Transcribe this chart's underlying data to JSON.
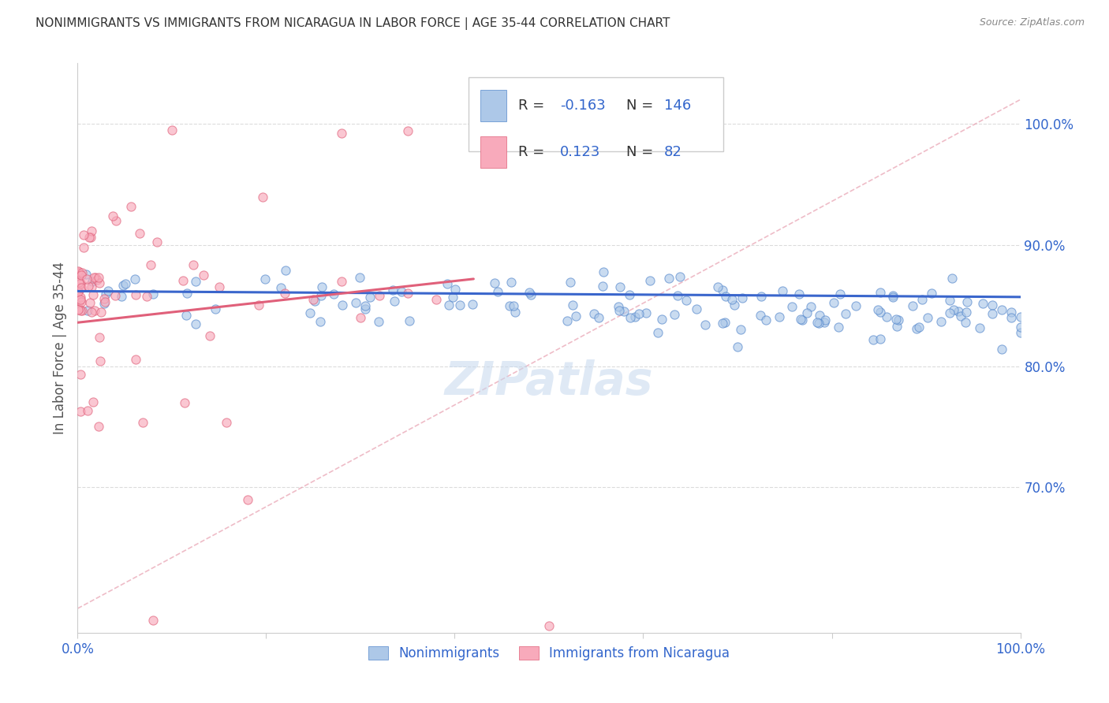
{
  "title": "NONIMMIGRANTS VS IMMIGRANTS FROM NICARAGUA IN LABOR FORCE | AGE 35-44 CORRELATION CHART",
  "source": "Source: ZipAtlas.com",
  "ylabel": "In Labor Force | Age 35-44",
  "xlim": [
    0.0,
    1.0
  ],
  "ylim": [
    0.58,
    1.05
  ],
  "yticks": [
    0.7,
    0.8,
    0.9,
    1.0
  ],
  "ytick_labels": [
    "70.0%",
    "80.0%",
    "90.0%",
    "100.0%"
  ],
  "xticks": [
    0.0,
    0.2,
    0.4,
    0.6,
    0.8,
    1.0
  ],
  "xtick_labels": [
    "0.0%",
    "",
    "",
    "",
    "",
    "100.0%"
  ],
  "blue_R": -0.163,
  "blue_N": 146,
  "pink_R": 0.123,
  "pink_N": 82,
  "blue_color": "#adc8e8",
  "blue_edge_color": "#5588cc",
  "pink_color": "#f8aabb",
  "pink_edge_color": "#e0607a",
  "blue_line_color": "#3a66cc",
  "pink_line_color": "#e0607a",
  "watermark": "ZIPatlas",
  "background_color": "#ffffff",
  "grid_color": "#cccccc"
}
